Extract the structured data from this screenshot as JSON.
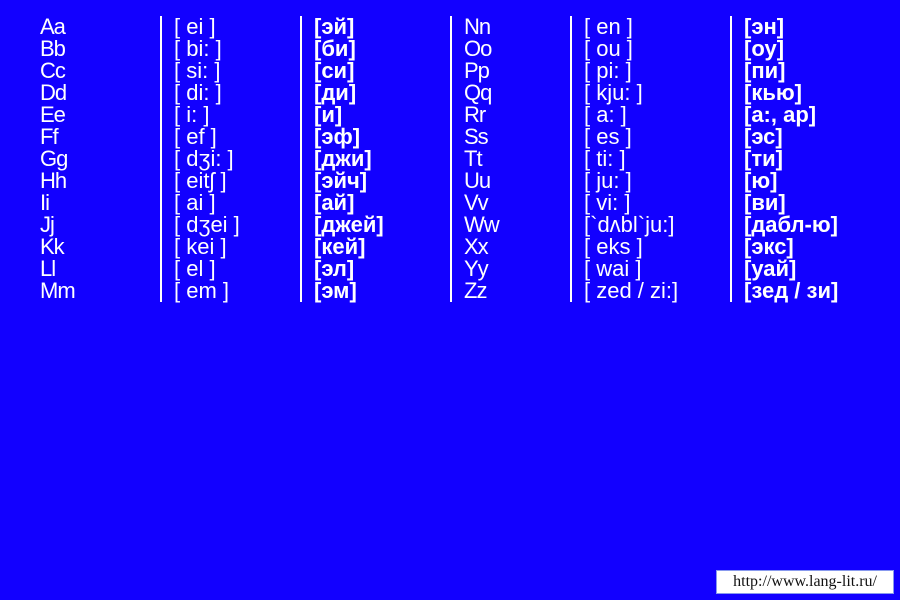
{
  "background_color": "#1200ff",
  "text_color": "#ffffff",
  "separator_color": "#ffffff",
  "font_size_pt": 22,
  "rows_per_column": 13,
  "columns": [
    {
      "kind": "letter",
      "bold": false,
      "items": [
        "Aa",
        "Bb",
        "Cc",
        "Dd",
        "Ee",
        "Ff",
        "Gg",
        "Hh",
        "Ii",
        "Jj",
        "Kk",
        "Ll",
        "Mm"
      ]
    },
    {
      "kind": "ipa",
      "bold": false,
      "items": [
        "[ ei ]",
        "[ bi: ]",
        "[ si: ]",
        "[ di: ]",
        "[ i: ]",
        "[ ef ]",
        "[ dʒi: ]",
        "[ eitʃ ]",
        "[ ai ]",
        "[ dʒei ]",
        "[ kei ]",
        "[ el ]",
        "[ em ]"
      ]
    },
    {
      "kind": "ru",
      "bold": true,
      "items": [
        "[эй]",
        "[би]",
        "[си]",
        "[ди]",
        "[и]",
        "[эф]",
        "[джи]",
        "[эйч]",
        "[ай]",
        "[джей]",
        "[кей]",
        "[эл]",
        "[эм]"
      ]
    },
    {
      "kind": "letter",
      "bold": false,
      "items": [
        "Nn",
        "Oo",
        "Pp",
        "Qq",
        "Rr",
        "Ss",
        "Tt",
        "Uu",
        "Vv",
        "Ww",
        "Xx",
        "Yy",
        "Zz"
      ]
    },
    {
      "kind": "ipa",
      "bold": false,
      "items": [
        "[ en ]",
        "[ ou ]",
        "[ pi: ]",
        "[ kju: ]",
        "[ a: ]",
        "[ es ]",
        "[ ti: ]",
        "[ ju: ]",
        "[ vi: ]",
        "[`dʌbl`ju:]",
        "[ eks ]",
        "[ wai ]",
        "[ zed / zi:]"
      ]
    },
    {
      "kind": "ru",
      "bold": true,
      "items": [
        "[эн]",
        "[оу]",
        "[пи]",
        "[кью]",
        "[а:, ар]",
        "[эс]",
        "[ти]",
        "[ю]",
        "[ви]",
        "[дабл-ю]",
        "[экс]",
        "[уай]",
        "[зед / зи]"
      ]
    }
  ],
  "footer": {
    "text": "http://www.lang-lit.ru/",
    "background": "#ffffff",
    "text_color": "#111111"
  }
}
